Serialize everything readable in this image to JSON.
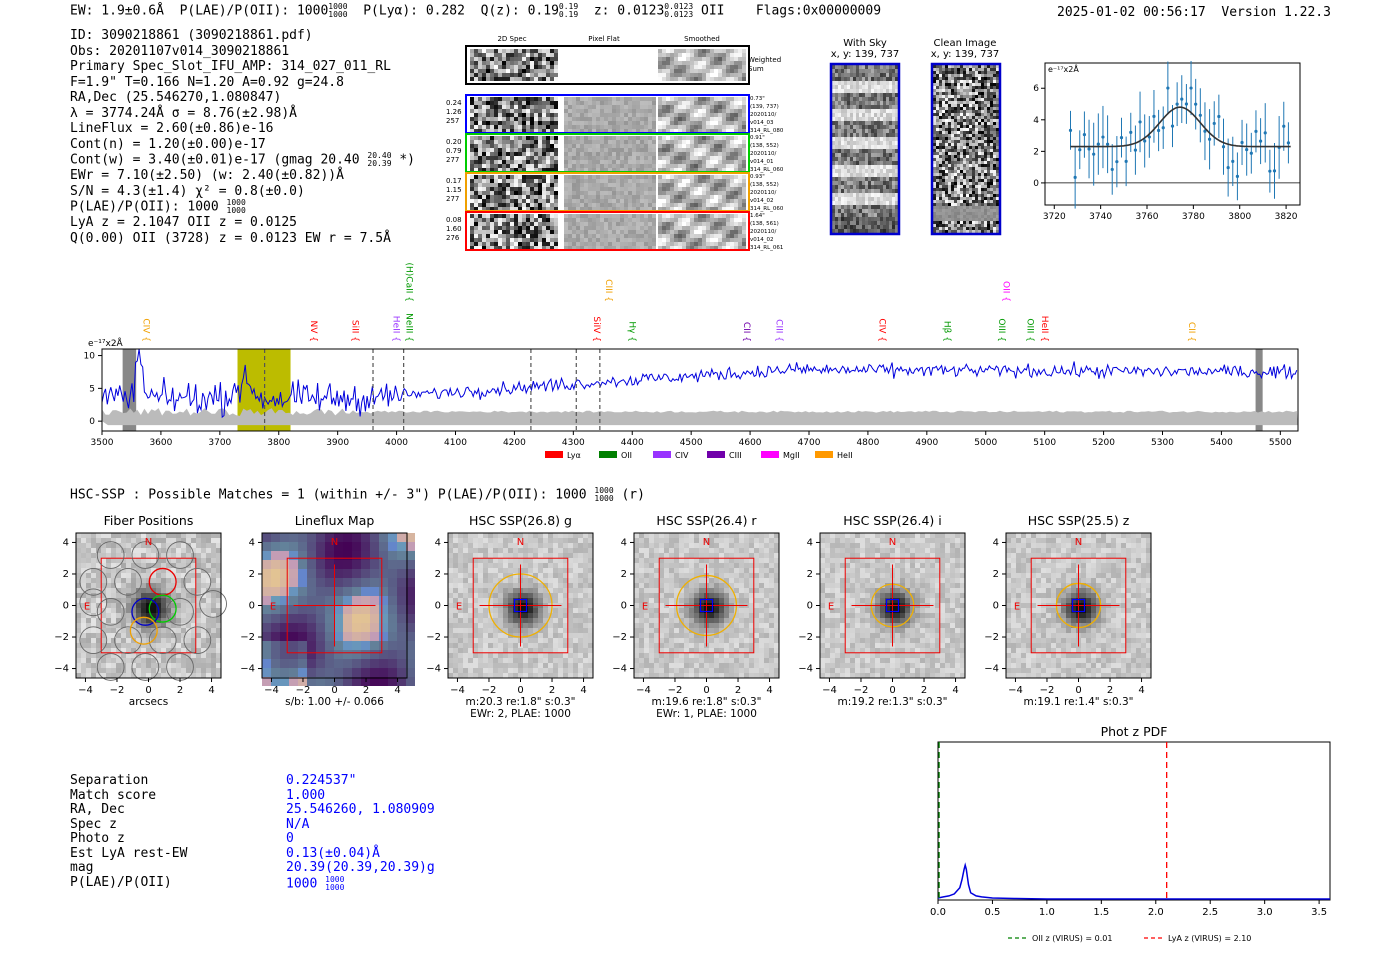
{
  "header": {
    "ew": "EW: 1.9±0.6Å",
    "plae_label": "P(LAE)/P(OII):",
    "plae_value": "1000",
    "plae_hi": "1000",
    "plae_lo": "1000",
    "plya": "P(Lyα): 0.282",
    "qz_label": "Q(z): 0.19",
    "qz_hi": "0.19",
    "qz_lo": "0.19",
    "z_label": "z: 0.0123",
    "z_hi": "0.0123",
    "z_lo": "0.0123",
    "z_line": "OII",
    "flags": "Flags:0x00000009",
    "timestamp": "2025-01-02 00:56:17",
    "version": "Version 1.22.3"
  },
  "info": {
    "id": "ID: 3090218861 (3090218861.pdf)",
    "obs": "Obs: 20201107v014_3090218861",
    "primary": "Primary Spec_Slot_IFU_AMP: 314_027_011_RL",
    "fiber": "F=1.9\"  T=0.166  N=1.20  A=0.92  g=24.8",
    "radec": "RA,Dec (25.546270,1.080847)",
    "lambda": "λ = 3774.24Å  σ = 8.76(±2.98)Å",
    "lineflux": "LineFlux = 2.60(±0.86)e-16",
    "contn": "Cont(n) = 1.20(±0.00)e-17",
    "contw": "Cont(w) = 3.40(±0.01)e-17 (gmag 20.40",
    "contw_hi": "20.40",
    "contw_lo": "20.39",
    "contw_end": "*)",
    "ewr": "EWr = 7.10(±2.50) (w: 2.40(±0.82))Å",
    "sn": "S/N = 4.3(±1.4)  χ² = 0.8(±0.0)",
    "plae": "P(LAE)/P(OII): 1000",
    "plae_hi": "1000",
    "plae_lo": "1000",
    "lya": "LyA z = 2.1047  OII z = 0.0125",
    "q": "Q(0.00) OII (3728) z = 0.0123  EW r = 7.5Å"
  },
  "spec2d": {
    "col_labels": [
      "2D Spec",
      "Pixel Flat",
      "Smoothed"
    ],
    "weighted": "Weighted Sum",
    "rows": [
      {
        "left": [
          "0.24",
          "1.26",
          "257"
        ],
        "right": [
          "0.73\"",
          "(139, 737)",
          "2020110/",
          "v014_03",
          "314_RL_080"
        ],
        "color": "#0000ff"
      },
      {
        "left": [
          "0.20",
          "0.79",
          "277"
        ],
        "right": [
          "0.91\"",
          "(138, 552)",
          "2020110/",
          "v014_01",
          "314_RL_060"
        ],
        "color": "#00cc00"
      },
      {
        "left": [
          "0.17",
          "1.15",
          "277"
        ],
        "right": [
          "0.93\"",
          "(138, 552)",
          "2020110/",
          "v014_02",
          "314_RL_060"
        ],
        "color": "#f0a000"
      },
      {
        "left": [
          "0.08",
          "1.60",
          "276"
        ],
        "right": [
          "1.64\"",
          "(138, 561)",
          "2020110/",
          "v014_02",
          "314_RL_061"
        ],
        "color": "#ff0000"
      }
    ]
  },
  "cutouts": {
    "with_sky": "With Sky",
    "with_sky_xy": "x, y: 139, 737",
    "clean": "Clean Image",
    "clean_xy": "x, y: 139, 737"
  },
  "mini_chart": {
    "ylabel": "e⁻¹⁷x2Å",
    "xticks": [
      3720,
      3740,
      3760,
      3780,
      3800,
      3820
    ],
    "yticks": [
      0,
      2,
      4,
      6
    ],
    "xlim": [
      3716,
      3826
    ],
    "ylim": [
      -1.4,
      7.6
    ],
    "gauss": {
      "cont": 2.3,
      "amp": 2.5,
      "mu": 3774.24,
      "sigma": 8.76,
      "xmin": 3727,
      "xmax": 3822
    }
  },
  "spectrum": {
    "ylabel": "e⁻¹⁷x2Å",
    "xlim": [
      3500,
      5530
    ],
    "ylim": [
      -1.5,
      11
    ],
    "xticks": [
      3500,
      3600,
      3700,
      3800,
      3900,
      4000,
      4100,
      4200,
      4300,
      4400,
      4500,
      4600,
      4700,
      4800,
      4900,
      5000,
      5100,
      5200,
      5300,
      5400,
      5500
    ],
    "yticks": [
      0,
      5,
      10
    ],
    "lines": [
      {
        "name": "CIV",
        "x": 3565,
        "color": "#f0a000",
        "high": false
      },
      {
        "name": "NV",
        "x": 3850,
        "color": "#ff0000",
        "high": false
      },
      {
        "name": "SiII",
        "x": 3920,
        "color": "#ff0000",
        "high": false
      },
      {
        "name": "HeII",
        "x": 3990,
        "color": "#9933ff",
        "high": false
      },
      {
        "name": "NeIII",
        "x": 4012,
        "color": "#009900",
        "high": false
      },
      {
        "name": "(H)CaII",
        "x": 4012,
        "color": "#009900",
        "high": true
      },
      {
        "name": "SiIV",
        "x": 4330,
        "color": "#ff0000",
        "high": false
      },
      {
        "name": "CIII",
        "x": 4350,
        "color": "#f0a000",
        "high": true
      },
      {
        "name": "Hγ",
        "x": 4390,
        "color": "#009900",
        "high": false
      },
      {
        "name": "CII",
        "x": 4585,
        "color": "#7000aa",
        "high": false
      },
      {
        "name": "CIII",
        "x": 4640,
        "color": "#9933ff",
        "high": false
      },
      {
        "name": "CIV",
        "x": 4815,
        "color": "#ff0000",
        "high": false
      },
      {
        "name": "Hβ",
        "x": 4925,
        "color": "#009900",
        "high": false
      },
      {
        "name": "OII",
        "x": 5025,
        "color": "#ff00ff",
        "high": true
      },
      {
        "name": "OIII",
        "x": 5017,
        "color": "#009900",
        "high": false
      },
      {
        "name": "OIII",
        "x": 5066,
        "color": "#009900",
        "high": false
      },
      {
        "name": "HeII",
        "x": 5090,
        "color": "#ff0000",
        "high": false
      },
      {
        "name": "CII",
        "x": 5340,
        "color": "#f0a000",
        "high": false
      }
    ],
    "dashed_x": [
      3776,
      3960,
      4012,
      4228,
      4305,
      4345
    ],
    "shade": [
      3730,
      3820
    ],
    "legend": [
      {
        "name": "Lyα",
        "color": "#ff0000"
      },
      {
        "name": "OII",
        "color": "#008000"
      },
      {
        "name": "CIV",
        "color": "#9933ff"
      },
      {
        "name": "CIII",
        "color": "#7000aa"
      },
      {
        "name": "MgII",
        "color": "#ff00ff"
      },
      {
        "name": "HeII",
        "color": "#ff9900"
      }
    ]
  },
  "hsc": {
    "summary": "HSC-SSP : Possible Matches = 1 (within +/- 3\")  P(LAE)/P(OII): 1000",
    "summary_hi": "1000",
    "summary_lo": "1000",
    "summary_end": "(r)",
    "panels": [
      {
        "title": "Fiber Positions",
        "cap1": "arcsecs",
        "cap2": ""
      },
      {
        "title": "Lineflux Map",
        "cap1": "s/b: 1.00 +/- 0.066",
        "cap2": ""
      },
      {
        "title": "HSC SSP(26.8) g",
        "cap1": "m:20.3  re:1.8\"  s:0.3\"",
        "cap2": "EWr: 2, PLAE: 1000"
      },
      {
        "title": "HSC SSP(26.4) r",
        "cap1": "m:19.6  re:1.8\"  s:0.3\"",
        "cap2": "EWr: 1, PLAE: 1000"
      },
      {
        "title": "HSC SSP(26.4) i",
        "cap1": "m:19.2  re:1.3\"  s:0.3\"",
        "cap2": ""
      },
      {
        "title": "HSC SSP(25.5) z",
        "cap1": "m:19.1  re:1.4\"  s:0.3\"",
        "cap2": ""
      }
    ],
    "ticks": [
      -4,
      -2,
      0,
      2,
      4
    ],
    "north": "N",
    "east": "E"
  },
  "match": {
    "labels": [
      "Separation",
      "Match score",
      "RA, Dec",
      "Spec z",
      "Photo z",
      "Est LyA rest-EW",
      "mag",
      "P(LAE)/P(OII)"
    ],
    "values": [
      "0.224537\"",
      "1.000",
      "25.546260, 1.080909",
      "N/A",
      "0",
      "0.13(±0.04)Å",
      "20.39(20.39,20.39)g",
      "1000"
    ],
    "plae_hi": "1000",
    "plae_lo": "1000"
  },
  "chart_data": [
    {
      "type": "line",
      "title": "Phot z PDF",
      "xlabel": "",
      "ylabel": "",
      "xlim": [
        0,
        3.6
      ],
      "xticks": [
        0.0,
        0.5,
        1.0,
        1.5,
        2.0,
        2.5,
        3.0,
        3.5
      ],
      "xtick_labels": [
        "0.0",
        "0.5",
        "1.0",
        "1.5",
        "2.0",
        "2.5",
        "3.0",
        "3.5"
      ],
      "series": [
        {
          "name": "PDF",
          "x": [
            0.0,
            0.05,
            0.1,
            0.15,
            0.2,
            0.22,
            0.24,
            0.25,
            0.26,
            0.28,
            0.3,
            0.35,
            0.4,
            0.5,
            0.7,
            1.0,
            1.5,
            2.0,
            2.5,
            3.0,
            3.6
          ],
          "y": [
            0.02,
            0.03,
            0.04,
            0.06,
            0.12,
            0.2,
            0.3,
            0.34,
            0.3,
            0.15,
            0.07,
            0.04,
            0.03,
            0.02,
            0.015,
            0.01,
            0.01,
            0.01,
            0.01,
            0.01,
            0.01
          ]
        }
      ],
      "vlines": [
        {
          "label": "OII z (VIRUS) = 0.01",
          "x": 0.01,
          "color": "#008000"
        },
        {
          "label": "LyA z (VIRUS) = 2.10",
          "x": 2.1,
          "color": "#ff0000"
        }
      ]
    }
  ]
}
